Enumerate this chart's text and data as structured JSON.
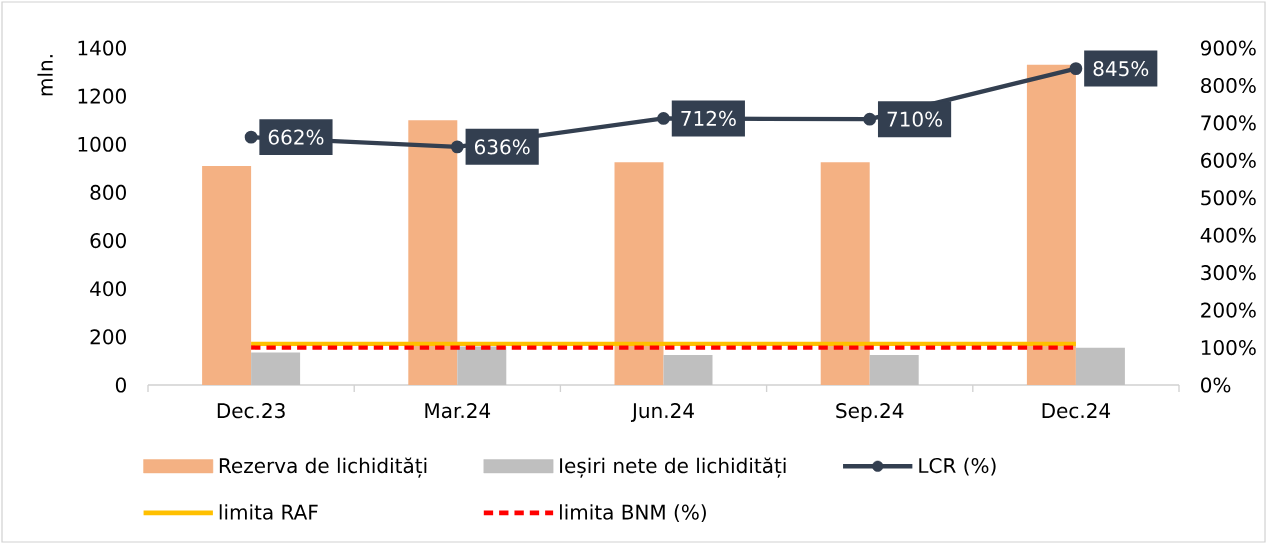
{
  "chart_data": {
    "type": "bar",
    "categories": [
      "Dec.23",
      "Mar.24",
      "Jun.24",
      "Sep.24",
      "Dec.24"
    ],
    "ylabel": "mln.",
    "ylim": [
      0,
      1400
    ],
    "yticks": [
      0,
      200,
      400,
      600,
      800,
      1000,
      1200,
      1400
    ],
    "y2lim": [
      0,
      900
    ],
    "y2ticks": [
      {
        "value": 0,
        "label": "0%"
      },
      {
        "value": 100,
        "label": "100%"
      },
      {
        "value": 200,
        "label": "200%"
      },
      {
        "value": 300,
        "label": "300%"
      },
      {
        "value": 400,
        "label": "400%"
      },
      {
        "value": 500,
        "label": "500%"
      },
      {
        "value": 600,
        "label": "600%"
      },
      {
        "value": 700,
        "label": "700%"
      },
      {
        "value": 800,
        "label": "800%"
      },
      {
        "value": 900,
        "label": "900%"
      }
    ],
    "legend": "bottom",
    "series": [
      {
        "name": "Rezerva de lichidități",
        "color": "#f4b183",
        "values": [
          910,
          1100,
          925,
          925,
          1330
        ]
      },
      {
        "name": "Ieșiri nete de lichidități",
        "color": "#bfbfbf",
        "values": [
          135,
          160,
          125,
          125,
          155
        ]
      },
      {
        "name": "LCR (%)",
        "type": "line",
        "axis": "y2",
        "color": "#333f50",
        "marker": "circle",
        "values": [
          662,
          636,
          712,
          710,
          845
        ],
        "value_labels": [
          "662%",
          "636%",
          "712%",
          "710%",
          "845%"
        ]
      },
      {
        "name": "limita RAF",
        "type": "line",
        "axis": "y2",
        "color": "#ffc000",
        "values": [
          110,
          110,
          110,
          110,
          110
        ]
      },
      {
        "name": "limita BNM (%)",
        "type": "line",
        "axis": "y2",
        "color": "#ff0000",
        "line_style": "dashed",
        "values": [
          100,
          100,
          100,
          100,
          100
        ]
      }
    ]
  }
}
